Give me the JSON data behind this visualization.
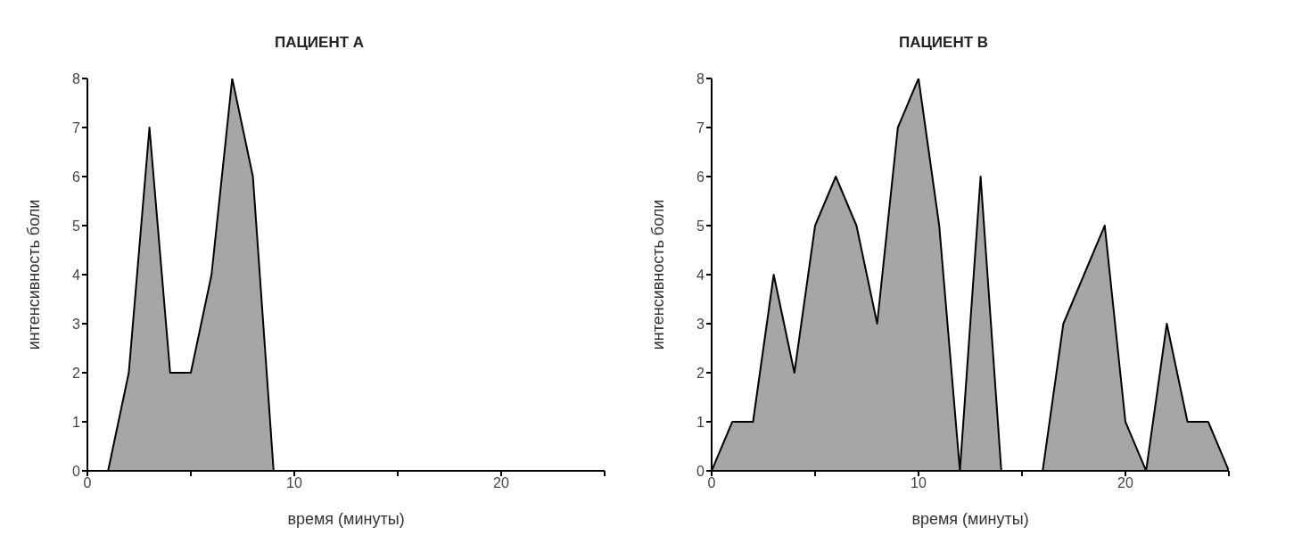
{
  "chart_data": [
    {
      "type": "area",
      "title": "ПАЦИЕНТ А",
      "xlabel": "время (минуты)",
      "ylabel": "интенсивность боли",
      "x": [
        1,
        2,
        3,
        4,
        5,
        6,
        7,
        8,
        9,
        10,
        11,
        12,
        13,
        14,
        15,
        16,
        17,
        18,
        19,
        20,
        21,
        22,
        23,
        24,
        25
      ],
      "series": [
        {
          "color": "#a6a6a6",
          "values": [
            0,
            2,
            7,
            2,
            2,
            4,
            8,
            6,
            0,
            0,
            0,
            0,
            0,
            0,
            0,
            0,
            0,
            0,
            0,
            0,
            0,
            0,
            0,
            0,
            0
          ]
        }
      ],
      "xlim": [
        0,
        25
      ],
      "xticks": [
        0,
        {
          "value": 5,
          "label": null
        },
        10,
        {
          "value": 15,
          "label": null
        },
        20,
        {
          "value": 25,
          "label": null
        }
      ],
      "ylim": [
        0,
        8
      ],
      "yticks": [
        0,
        1,
        2,
        3,
        4,
        5,
        6,
        7,
        8
      ],
      "grid": false,
      "legend": false,
      "marker": "none"
    },
    {
      "type": "area",
      "title": "ПАЦИЕНТ В",
      "xlabel": "время (минуты)",
      "ylabel": "интенсивность боли",
      "x": [
        0,
        1,
        2,
        3,
        4,
        5,
        6,
        7,
        8,
        9,
        10,
        11,
        12,
        13,
        14,
        15,
        16,
        17,
        18,
        19,
        20,
        21,
        22,
        23,
        24,
        25
      ],
      "series": [
        {
          "color": "#a6a6a6",
          "values": [
            0,
            1,
            1,
            4,
            2,
            5,
            6,
            5,
            3,
            7,
            8,
            5,
            0,
            6,
            0,
            0,
            0,
            3,
            4,
            5,
            1,
            0,
            3,
            1,
            1,
            0
          ]
        }
      ],
      "xlim": [
        0,
        25
      ],
      "xticks": [
        0,
        {
          "value": 5,
          "label": null
        },
        10,
        {
          "value": 15,
          "label": null
        },
        20,
        {
          "value": 25,
          "label": null
        }
      ],
      "ylim": [
        0,
        8
      ],
      "yticks": [
        0,
        1,
        2,
        3,
        4,
        5,
        6,
        7,
        8
      ],
      "grid": false,
      "legend": false,
      "marker": "none"
    }
  ]
}
